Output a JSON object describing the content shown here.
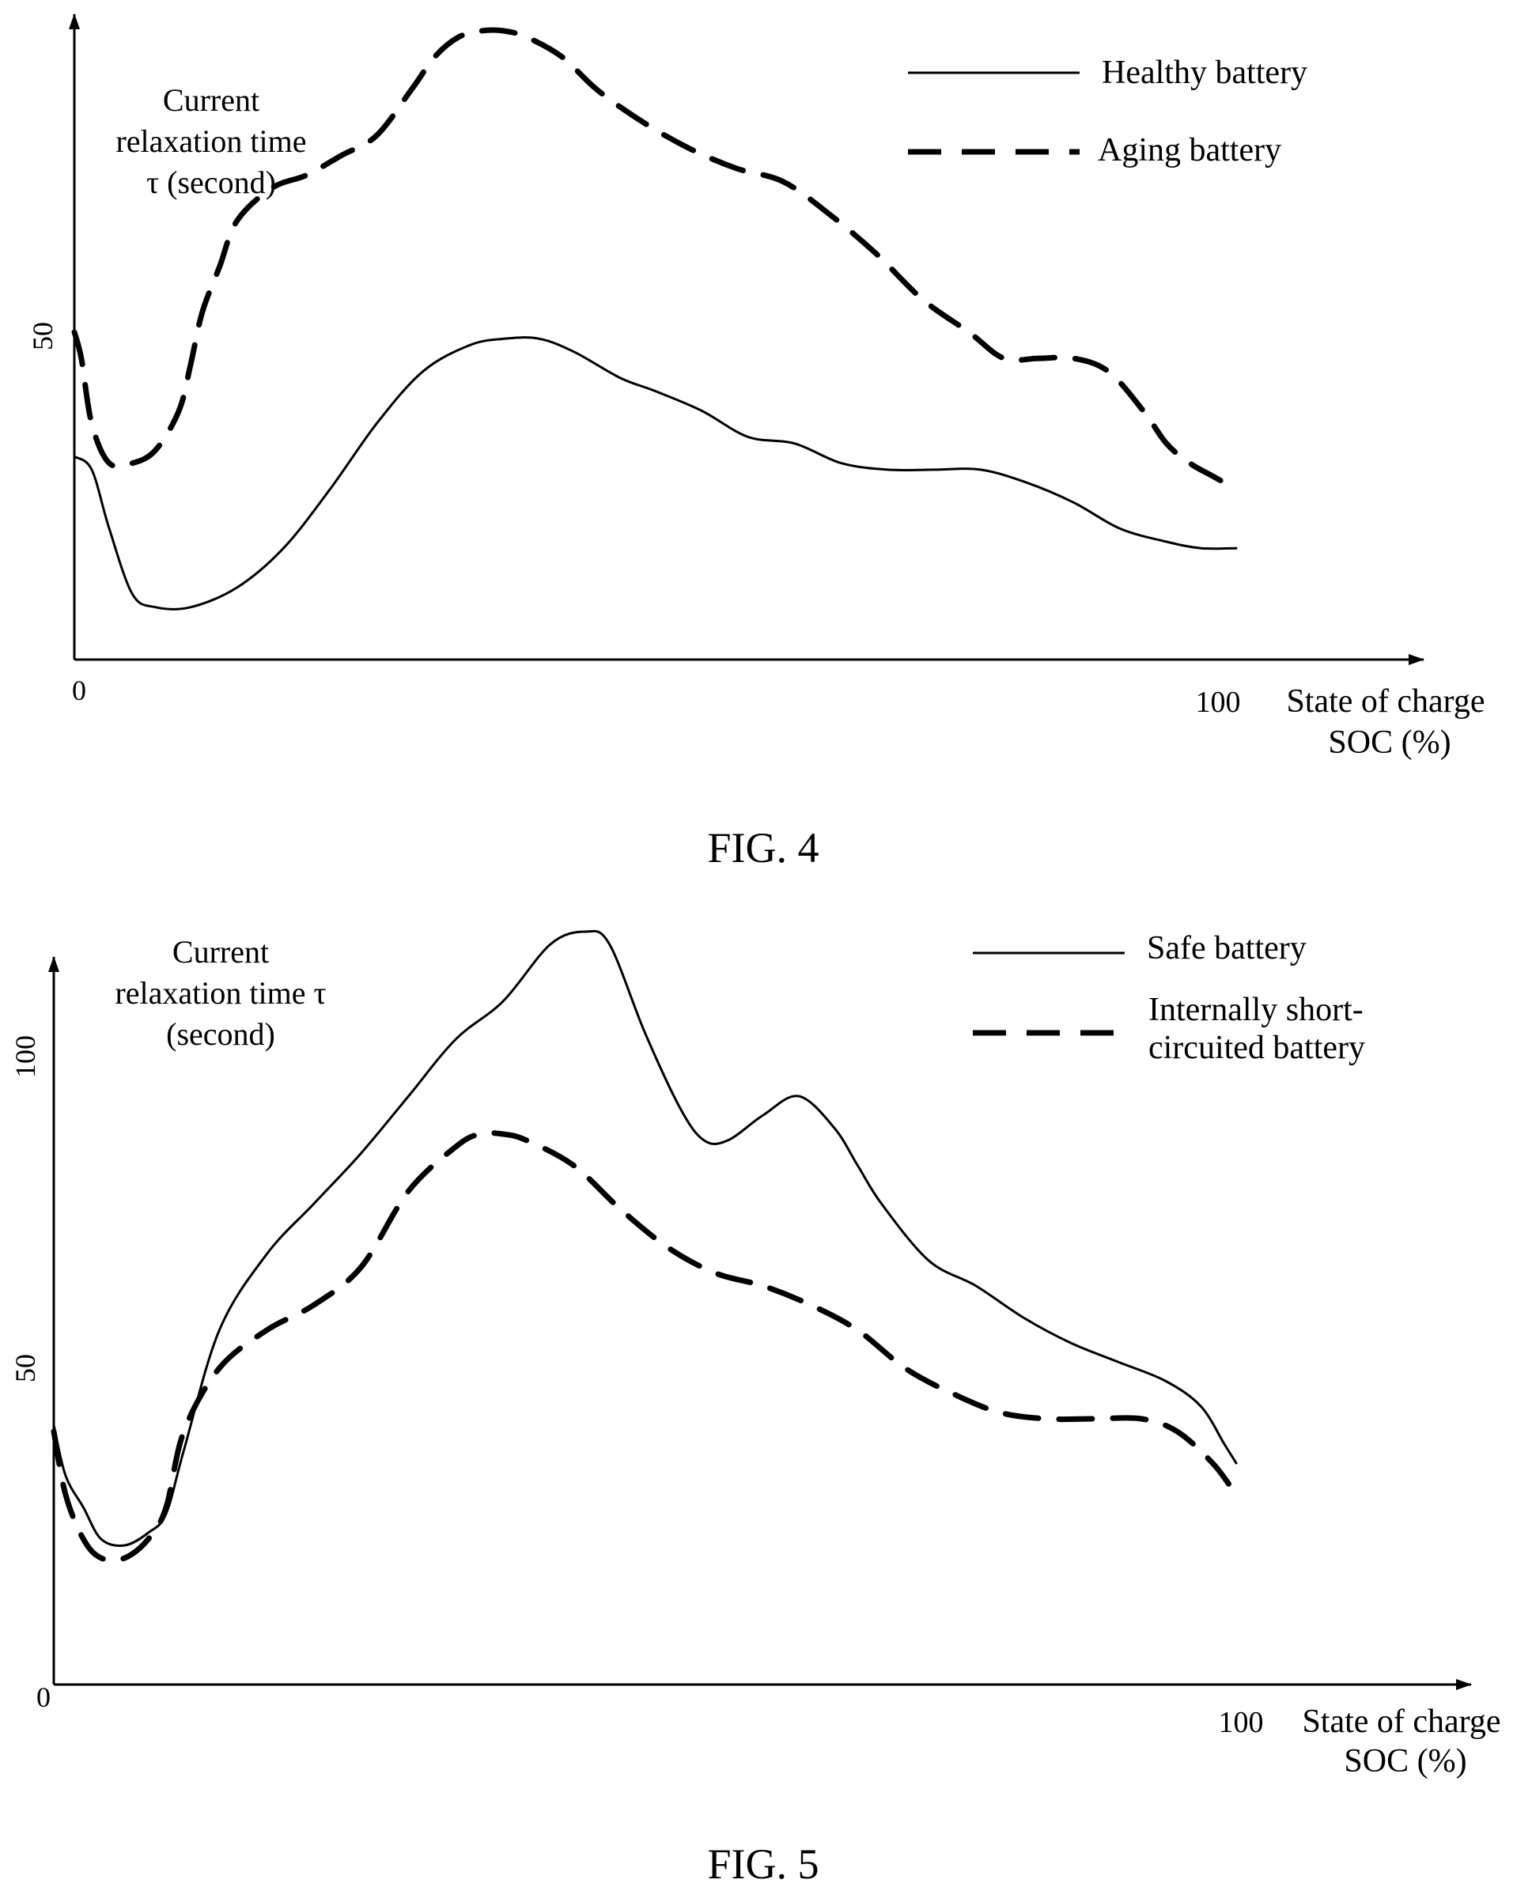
{
  "chart_data": [
    {
      "type": "line",
      "figure_label": "FIG. 4",
      "ylabel_lines": [
        "Current",
        "relaxation time",
        "τ (second)"
      ],
      "xlabel_lines": [
        "State of charge",
        "SOC (%)"
      ],
      "x_ticks": [
        "0",
        "100"
      ],
      "y_ticks": [
        "50"
      ],
      "xlim": [
        0,
        115
      ],
      "ylim": [
        0,
        100
      ],
      "legend_position": "top-right",
      "series": [
        {
          "name": "Healthy battery",
          "style": "solid",
          "x": [
            0,
            1.5,
            3,
            5,
            7,
            10,
            14,
            18,
            22,
            26,
            30,
            34,
            37,
            40,
            43,
            47,
            50,
            54,
            58,
            62,
            66,
            70,
            74,
            78,
            82,
            86,
            90,
            94,
            97,
            100
          ],
          "y": [
            31,
            29,
            20,
            10,
            8,
            8,
            11,
            17,
            26,
            36,
            44,
            48,
            49,
            49,
            47,
            43,
            41,
            38,
            34,
            33,
            30,
            29,
            29,
            29,
            27,
            24,
            20,
            18,
            17,
            17
          ]
        },
        {
          "name": "Aging battery",
          "style": "dashed",
          "x": [
            0,
            0.6,
            1.5,
            3,
            5,
            7,
            9,
            10,
            11,
            12.5,
            14,
            17,
            20,
            23,
            26,
            29,
            31,
            33,
            35,
            37,
            39,
            42,
            45,
            49,
            53,
            57,
            61,
            65,
            69,
            73,
            77,
            80,
            83,
            86,
            89,
            92,
            94,
            96,
            98,
            99
          ],
          "y": [
            50,
            46,
            36,
            30,
            30,
            32,
            38,
            45,
            53,
            60,
            67,
            72,
            74,
            77,
            80,
            87,
            92,
            95,
            96,
            96,
            95,
            92,
            87,
            82,
            78,
            75,
            73,
            68,
            62,
            55,
            50,
            46,
            46,
            46,
            44,
            38,
            33,
            30,
            28,
            27
          ]
        }
      ]
    },
    {
      "type": "line",
      "figure_label": "FIG. 5",
      "ylabel_lines": [
        "Current",
        "relaxation time τ",
        "(second)"
      ],
      "xlabel_lines": [
        "State of charge",
        "SOC (%)"
      ],
      "x_ticks": [
        "0",
        "100"
      ],
      "y_ticks": [
        "50",
        "100"
      ],
      "xlim": [
        0,
        120
      ],
      "ylim": [
        0,
        120
      ],
      "legend_position": "top-right",
      "series": [
        {
          "name": "Safe battery",
          "style": "solid",
          "x": [
            0,
            1,
            2.5,
            4,
            6,
            8,
            9.5,
            11,
            14,
            18,
            22,
            26,
            30,
            34,
            38,
            42,
            45,
            47,
            50,
            53,
            55,
            57,
            60,
            63,
            66,
            68,
            70,
            74,
            78,
            82,
            86,
            90,
            94,
            97,
            99,
            100
          ],
          "y": [
            41,
            33,
            28,
            23,
            22,
            24,
            27,
            37,
            56,
            68,
            76,
            84,
            93,
            102,
            108,
            117,
            119,
            117,
            103,
            91,
            86,
            86,
            90,
            93,
            88,
            82,
            76,
            67,
            63,
            58,
            54,
            51,
            48,
            44,
            38,
            35
          ],
          "y_ticks_ref": "data units"
        },
        {
          "name": "Internally short-circuited battery",
          "style": "dashed",
          "x": [
            0,
            1,
            2.5,
            4,
            6,
            8,
            9.5,
            11,
            14,
            18,
            22,
            26,
            30,
            34,
            36,
            38,
            40,
            44,
            48,
            52,
            56,
            60,
            64,
            68,
            72,
            76,
            80,
            84,
            88,
            92,
            95,
            98,
            100
          ],
          "y": [
            40,
            30,
            23,
            20,
            20,
            23,
            28,
            40,
            50,
            56,
            60,
            66,
            78,
            85,
            87,
            87,
            86,
            82,
            75,
            69,
            65,
            63,
            60,
            56,
            50,
            46,
            43,
            42,
            42,
            42,
            40,
            35,
            30
          ]
        }
      ]
    }
  ]
}
